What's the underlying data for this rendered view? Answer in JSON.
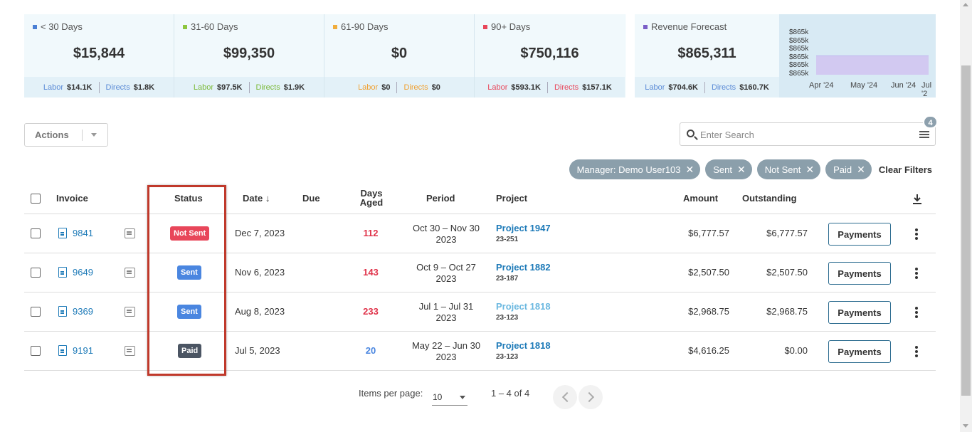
{
  "aging": [
    {
      "label": "< 30 Days",
      "color": "#4a7fd4",
      "value": "$15,844",
      "labor_label": "Labor",
      "labor_value": "$14.1K",
      "labor_color": "#5b8bd6",
      "directs_label": "Directs",
      "directs_value": "$1.8K",
      "directs_color": "#5b8bd6"
    },
    {
      "label": "31-60 Days",
      "color": "#8dc63f",
      "value": "$99,350",
      "labor_label": "Labor",
      "labor_value": "$97.5K",
      "labor_color": "#7cba3a",
      "directs_label": "Directs",
      "directs_value": "$1.9K",
      "directs_color": "#7cba3a"
    },
    {
      "label": "61-90 Days",
      "color": "#f0ad3c",
      "value": "$0",
      "labor_label": "Labor",
      "labor_value": "$0",
      "labor_color": "#f0a030",
      "directs_label": "Directs",
      "directs_value": "$0",
      "directs_color": "#f0a030"
    },
    {
      "label": "90+ Days",
      "color": "#e8465a",
      "value": "$750,116",
      "labor_label": "Labor",
      "labor_value": "$593.1K",
      "labor_color": "#e8465a",
      "directs_label": "Directs",
      "directs_value": "$157.1K",
      "directs_color": "#e8465a"
    }
  ],
  "forecast": {
    "label": "Revenue Forecast",
    "color": "#7b5fc7",
    "value": "$865,311",
    "labor_label": "Labor",
    "labor_value": "$704.6K",
    "directs_label": "Directs",
    "directs_value": "$160.7K",
    "chart_data": {
      "type": "area",
      "title": "",
      "x": [
        "Apr '24",
        "May '24",
        "Jun '24",
        "Jul '2"
      ],
      "y_ticks": [
        "$865k",
        "$865k",
        "$865k",
        "$865k",
        "$865k",
        "$865k"
      ],
      "values": [
        865311,
        865311,
        865311,
        865311
      ]
    }
  },
  "toolbar": {
    "actions_label": "Actions",
    "search_placeholder": "Enter Search",
    "filter_count": "4"
  },
  "chips": [
    {
      "label": "Manager: Demo User103"
    },
    {
      "label": "Sent"
    },
    {
      "label": "Not Sent"
    },
    {
      "label": "Paid"
    }
  ],
  "clear_filters": "Clear Filters",
  "columns": {
    "invoice": "Invoice",
    "status": "Status",
    "date": "Date",
    "due": "Due",
    "days_aged_1": "Days",
    "days_aged_2": "Aged",
    "period": "Period",
    "project": "Project",
    "amount": "Amount",
    "outstanding": "Outstanding"
  },
  "rows": [
    {
      "invoice": "9841",
      "status": "Not Sent",
      "status_color": "#e8465a",
      "date": "Dec 7, 2023",
      "due": "",
      "days": "112",
      "days_color": "#e0334a",
      "period_1": "Oct 30 – Nov 30",
      "period_2": "2023",
      "project": "Project 1947",
      "project_color": "#1d7ab8",
      "code": "23-251",
      "amount": "$6,777.57",
      "outstanding": "$6,777.57",
      "payments": "Payments"
    },
    {
      "invoice": "9649",
      "status": "Sent",
      "status_color": "#4a86e0",
      "date": "Nov 6, 2023",
      "due": "",
      "days": "143",
      "days_color": "#e0334a",
      "period_1": "Oct 9 – Oct 27",
      "period_2": "2023",
      "project": "Project 1882",
      "project_color": "#1d7ab8",
      "code": "23-187",
      "amount": "$2,507.50",
      "outstanding": "$2,507.50",
      "payments": "Payments"
    },
    {
      "invoice": "9369",
      "status": "Sent",
      "status_color": "#4a86e0",
      "date": "Aug 8, 2023",
      "due": "",
      "days": "233",
      "days_color": "#e0334a",
      "period_1": "Jul 1 – Jul 31",
      "period_2": "2023",
      "project": "Project 1818",
      "project_color": "#6bb8e0",
      "code": "23-123",
      "amount": "$2,968.75",
      "outstanding": "$2,968.75",
      "payments": "Payments"
    },
    {
      "invoice": "9191",
      "status": "Paid",
      "status_color": "#4b5563",
      "date": "Jul 5, 2023",
      "due": "",
      "days": "20",
      "days_color": "#4a86e0",
      "period_1": "May 22 – Jun 30",
      "period_2": "2023",
      "project": "Project 1818",
      "project_color": "#1d7ab8",
      "code": "23-123",
      "amount": "$4,616.25",
      "outstanding": "$0.00",
      "payments": "Payments"
    }
  ],
  "pagination": {
    "items_per_page_label": "Items per page:",
    "items_per_page": "10",
    "range": "1 – 4 of 4"
  }
}
